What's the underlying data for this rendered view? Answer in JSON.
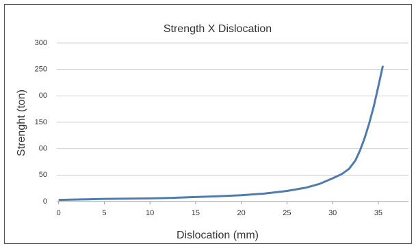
{
  "chart_data": {
    "type": "line",
    "title": "Strength X Dislocation",
    "x_label": "Dislocation (mm)",
    "y_label": "Strenght (ton)",
    "x": [
      0,
      2.5,
      5,
      7.5,
      10,
      12.5,
      15,
      17.5,
      20,
      22.5,
      25,
      27,
      28.5,
      30,
      31,
      31.8,
      32.5,
      33,
      33.5,
      34,
      34.5,
      35,
      35.5
    ],
    "series": [
      {
        "name": "Strength",
        "color": "#4f7cac",
        "values": [
          3,
          4,
          5,
          5.5,
          6,
          7,
          8.5,
          10,
          12,
          15,
          20,
          26,
          33,
          44,
          52,
          62,
          78,
          97,
          120,
          148,
          180,
          218,
          257
        ]
      }
    ],
    "xlim": [
      -0.2,
      38.3
    ],
    "xticks": [
      0,
      5,
      10,
      15,
      20,
      25,
      30,
      35
    ],
    "ylim": [
      0,
      300
    ],
    "yticks": [
      0,
      50,
      {
        "value": 100,
        "label": "00"
      },
      150,
      {
        "value": 200,
        "label": "00"
      },
      250,
      300
    ],
    "grid": true
  }
}
